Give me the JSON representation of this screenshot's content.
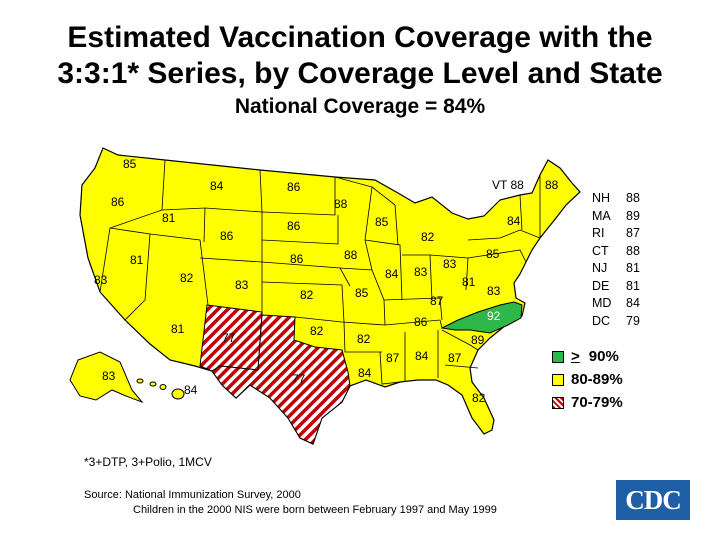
{
  "title": {
    "line1": "Estimated Vaccination Coverage with the",
    "line2": "3:3:1* Series, by Coverage Level and State",
    "subtitle": "National Coverage = 84%"
  },
  "colors": {
    "green": "#2eb84a",
    "yellow": "#ffff00",
    "hatch_red": "#c00000",
    "border": "#000000"
  },
  "map_labels": {
    "WA": "85",
    "OR": "86",
    "CA": "83",
    "ID": "81",
    "NV": "81",
    "MT": "84",
    "WY": "86",
    "UT": "82",
    "AZ": "81",
    "CO": "83",
    "NM": "77",
    "ND": "86",
    "SD": "86",
    "NE": "86",
    "KS": "82",
    "OK": "82",
    "TX": "77",
    "MN": "88",
    "IA": "88",
    "MO": "85",
    "AR": "82",
    "LA": "84",
    "WI": "85",
    "IL": "84",
    "MI": "82",
    "IN": "83",
    "OH": "83",
    "KY": "87",
    "TN": "86",
    "MS": "87",
    "AL": "84",
    "GA": "87",
    "FL": "82",
    "SC": "89",
    "NC": "92",
    "VA": "83",
    "WV": "81",
    "PA": "85",
    "NY": "84",
    "ME": "88",
    "VT": "VT 88",
    "AK": "83",
    "HI": "84"
  },
  "small_states": [
    {
      "abbr": "NH",
      "value": "88"
    },
    {
      "abbr": "MA",
      "value": "89"
    },
    {
      "abbr": "RI",
      "value": "87"
    },
    {
      "abbr": "CT",
      "value": "88"
    },
    {
      "abbr": "NJ",
      "value": "81"
    },
    {
      "abbr": "DE",
      "value": "81"
    },
    {
      "abbr": "MD",
      "value": "84"
    },
    {
      "abbr": "DC",
      "value": "79"
    }
  ],
  "legend": {
    "high": {
      "symbol": ">",
      "label": "90%"
    },
    "mid": {
      "label": "80-89%"
    },
    "low": {
      "label": "70-79%"
    }
  },
  "footnote": "*3+DTP, 3+Polio, 1MCV",
  "source": {
    "line1": "Source:  National Immunization Survey, 2000",
    "line2": "Children in the 2000 NIS were born between February 1997 and May 1999"
  },
  "logo": {
    "text": "CDC"
  }
}
